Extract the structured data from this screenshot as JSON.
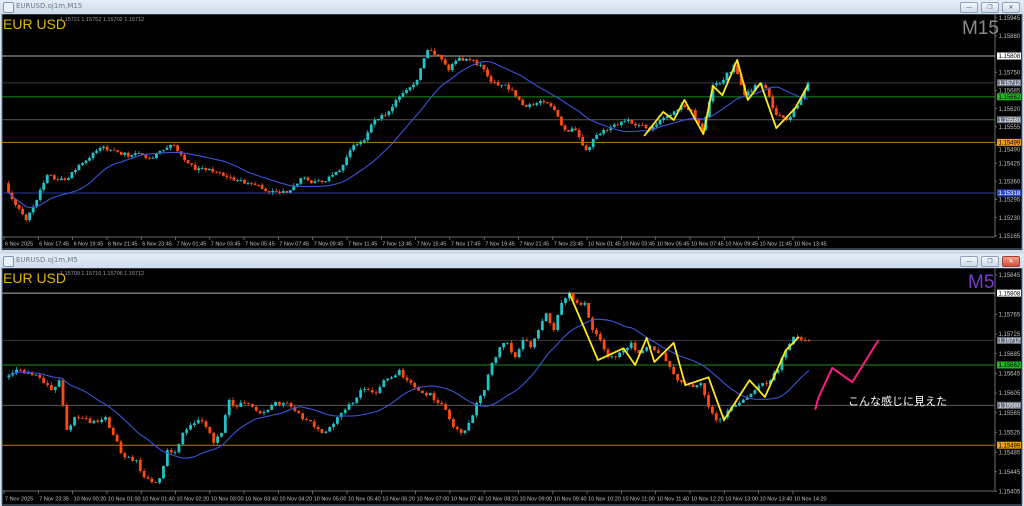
{
  "windows": [
    {
      "title": "EURUSD.oj1m,M15",
      "legend_symbol": "EUR USD",
      "ohlc": "1.15721 1.15752 1.15702 1.15712",
      "timeframe": "M15",
      "timeframe_color": "#8a8a8a",
      "buttons": {
        "minimize": "—",
        "restore": "❐",
        "close": "✕"
      },
      "price_labels": [
        "1.15945",
        "1.15880",
        "1.15750",
        "1.15685",
        "1.15620",
        "1.15555",
        "1.15490",
        "1.15425",
        "1.15360",
        "1.15295",
        "1.15230",
        "1.15165"
      ],
      "levels": [
        {
          "price": "1.15808",
          "color": "#b4b4b4",
          "label_bg": "#ffffff",
          "label_fg": "#000000"
        },
        {
          "price": "1.15712",
          "color": "#3a3a3a",
          "label_bg": "#70788a",
          "label_fg": "#ffffff"
        },
        {
          "price": "1.15662",
          "color": "#1e8c1e",
          "label_bg": "#22b822",
          "label_fg": "#000000"
        },
        {
          "price": "1.15580",
          "color": "#5a5a5a",
          "label_bg": "#70788a",
          "label_fg": "#ffffff"
        },
        {
          "price": "1.15499",
          "color": "#c07800",
          "label_bg": "#f0a000",
          "label_fg": "#000000"
        },
        {
          "price": "1.15318",
          "color": "#2838a0",
          "label_bg": "#3048c8",
          "label_fg": "#ffffff"
        }
      ],
      "time_labels": [
        "6 Nov 2025",
        "6 Nov 17:45",
        "6 Nov 19:45",
        "6 Nov 21:45",
        "6 Nov 23:45",
        "7 Nov 01:45",
        "7 Nov 03:45",
        "7 Nov 05:45",
        "7 Nov 07:45",
        "7 Nov 09:45",
        "7 Nov 11:45",
        "7 Nov 13:45",
        "7 Nov 15:45",
        "7 Nov 17:45",
        "7 Nov 19:45",
        "7 Nov 21:45",
        "7 Nov 23:45",
        "10 Nov 01:45",
        "10 Nov 03:45",
        "10 Nov 05:45",
        "10 Nov 07:45",
        "10 Nov 09:45",
        "10 Nov 11:45",
        "10 Nov 13:45"
      ]
    },
    {
      "title": "EURUSD.oj1m,M5",
      "legend_symbol": "EUR USD",
      "ohlc": "1.15709 1.15716 1.15706 1.15712",
      "timeframe": "M5",
      "timeframe_color": "#7a3cc8",
      "buttons": {
        "minimize": "—",
        "restore": "❐",
        "close": "✕"
      },
      "price_labels": [
        "1.15845",
        "1.15765",
        "1.15725",
        "1.15685",
        "1.15645",
        "1.15605",
        "1.15565",
        "1.15525",
        "1.15485",
        "1.15445",
        "1.15405"
      ],
      "levels": [
        {
          "price": "1.15808",
          "color": "#b4b4b4",
          "label_bg": "#ffffff",
          "label_fg": "#000000"
        },
        {
          "price": "1.15712",
          "color": "#3a3a3a",
          "label_bg": "#70788a",
          "label_fg": "#ffffff"
        },
        {
          "price": "1.15662",
          "color": "#1e8c1e",
          "label_bg": "#22b822",
          "label_fg": "#000000"
        },
        {
          "price": "1.15580",
          "color": "#5a5a5a",
          "label_bg": "#70788a",
          "label_fg": "#ffffff"
        },
        {
          "price": "1.15499",
          "color": "#c07800",
          "label_bg": "#f0a000",
          "label_fg": "#000000"
        }
      ],
      "time_labels": [
        "7 Nov 2025",
        "7 Nov 23:35",
        "10 Nov 00:20",
        "10 Nov 01:00",
        "10 Nov 01:40",
        "10 Nov 02:20",
        "10 Nov 03:00",
        "10 Nov 03:40",
        "10 Nov 04:20",
        "10 Nov 05:00",
        "10 Nov 05:40",
        "10 Nov 06:20",
        "10 Nov 07:00",
        "10 Nov 07:40",
        "10 Nov 08:20",
        "10 Nov 09:00",
        "10 Nov 09:40",
        "10 Nov 10:20",
        "10 Nov 11:00",
        "10 Nov 11:40",
        "10 Nov 12:20",
        "10 Nov 13:00",
        "10 Nov 13:40",
        "10 Nov 14:20"
      ],
      "annotation": "こんな感じに見えた"
    }
  ],
  "colors": {
    "up": "#20c4c8",
    "down": "#ff4a10",
    "ma": "#3a55d8",
    "zigzag": "#ffe81a",
    "prediction": "#ff1a80",
    "background": "#000000"
  },
  "chart_data": [
    {
      "type": "candlestick",
      "symbol": "EURUSD",
      "timeframe": "M15",
      "ylim": [
        1.15164,
        1.15944
      ],
      "closes": [
        1.15353,
        1.15275,
        1.15221,
        1.15293,
        1.15382,
        1.15364,
        1.15371,
        1.15418,
        1.15443,
        1.15479,
        1.15472,
        1.15454,
        1.15454,
        1.15454,
        1.15443,
        1.15472,
        1.15489,
        1.15436,
        1.154,
        1.154,
        1.15393,
        1.15375,
        1.15364,
        1.15353,
        1.15346,
        1.15321,
        1.15318,
        1.15328,
        1.15371,
        1.15353,
        1.15357,
        1.15382,
        1.15418,
        1.15489,
        1.15507,
        1.15579,
        1.15597,
        1.15651,
        1.15686,
        1.15722,
        1.15829,
        1.15812,
        1.15758,
        1.15801,
        1.15794,
        1.15776,
        1.15715,
        1.15704,
        1.15686,
        1.15633,
        1.15633,
        1.15643,
        1.15615,
        1.15543,
        1.15543,
        1.15472,
        1.15525,
        1.15543,
        1.15561,
        1.15579,
        1.15561,
        1.15543,
        1.15579,
        1.15597,
        1.15633,
        1.15615,
        1.15543,
        1.15704,
        1.15722,
        1.15776,
        1.15668,
        1.15704,
        1.15693,
        1.15597,
        1.15579,
        1.15633,
        1.15712
      ],
      "moving_average": true,
      "zigzag": [
        [
          60.5,
          1.15522
        ],
        [
          62.3,
          1.15608
        ],
        [
          63.3,
          1.15579
        ],
        [
          64.3,
          1.15651
        ],
        [
          66.1,
          1.15529
        ],
        [
          67,
          1.15701
        ],
        [
          67.9,
          1.15668
        ],
        [
          69.3,
          1.15794
        ],
        [
          70.3,
          1.15651
        ],
        [
          71.5,
          1.15711
        ],
        [
          73,
          1.1555
        ],
        [
          74.8,
          1.15622
        ],
        [
          76,
          1.15704
        ]
      ]
    },
    {
      "type": "candlestick",
      "symbol": "EURUSD",
      "timeframe": "M5",
      "ylim": [
        1.15408,
        1.15855
      ],
      "closes": [
        1.15637,
        1.15646,
        1.15652,
        1.15646,
        1.15642,
        1.15625,
        1.15611,
        1.15631,
        1.1553,
        1.15556,
        1.15554,
        1.15544,
        1.15546,
        1.15556,
        1.1552,
        1.15483,
        1.15475,
        1.15469,
        1.15434,
        1.15424,
        1.15432,
        1.15489,
        1.15485,
        1.15524,
        1.1554,
        1.1555,
        1.15536,
        1.15504,
        1.15524,
        1.15591,
        1.15577,
        1.15585,
        1.15577,
        1.15564,
        1.15571,
        1.15587,
        1.15585,
        1.15577,
        1.15564,
        1.1555,
        1.15536,
        1.15524,
        1.15536,
        1.15556,
        1.15571,
        1.15585,
        1.15611,
        1.15611,
        1.15605,
        1.15631,
        1.15637,
        1.15652,
        1.15631,
        1.15617,
        1.15605,
        1.15605,
        1.15585,
        1.15571,
        1.15536,
        1.15524,
        1.15544,
        1.15585,
        1.15611,
        1.15666,
        1.15698,
        1.15707,
        1.15678,
        1.15713,
        1.15698,
        1.15733,
        1.15767,
        1.15733,
        1.15788,
        1.15808,
        1.15788,
        1.15788,
        1.15733,
        1.15713,
        1.15678,
        1.15678,
        1.15692,
        1.15707,
        1.15686,
        1.15698,
        1.15692,
        1.15686,
        1.15658,
        1.15631,
        1.15625,
        1.15617,
        1.15625,
        1.15577,
        1.1555,
        1.15556,
        1.15577,
        1.15585,
        1.15597,
        1.15611,
        1.15625,
        1.15631,
        1.15652,
        1.15692,
        1.15719,
        1.15713,
        1.15712
      ],
      "moving_average": true,
      "zigzag": [
        [
          73,
          1.15808
        ],
        [
          76.7,
          1.15672
        ],
        [
          80,
          1.15696
        ],
        [
          81.5,
          1.15662
        ],
        [
          83,
          1.15717
        ],
        [
          84,
          1.15668
        ],
        [
          86.5,
          1.15707
        ],
        [
          88,
          1.15621
        ],
        [
          91,
          1.15637
        ],
        [
          93,
          1.1555
        ],
        [
          96.3,
          1.15631
        ],
        [
          98.3,
          1.15597
        ],
        [
          101,
          1.15692
        ],
        [
          102.7,
          1.15719
        ]
      ],
      "prediction": [
        [
          104.8,
          1.15571
        ],
        [
          105.2,
          1.15595
        ],
        [
          107,
          1.15656
        ],
        [
          109.6,
          1.15627
        ],
        [
          113,
          1.15713
        ]
      ]
    }
  ]
}
